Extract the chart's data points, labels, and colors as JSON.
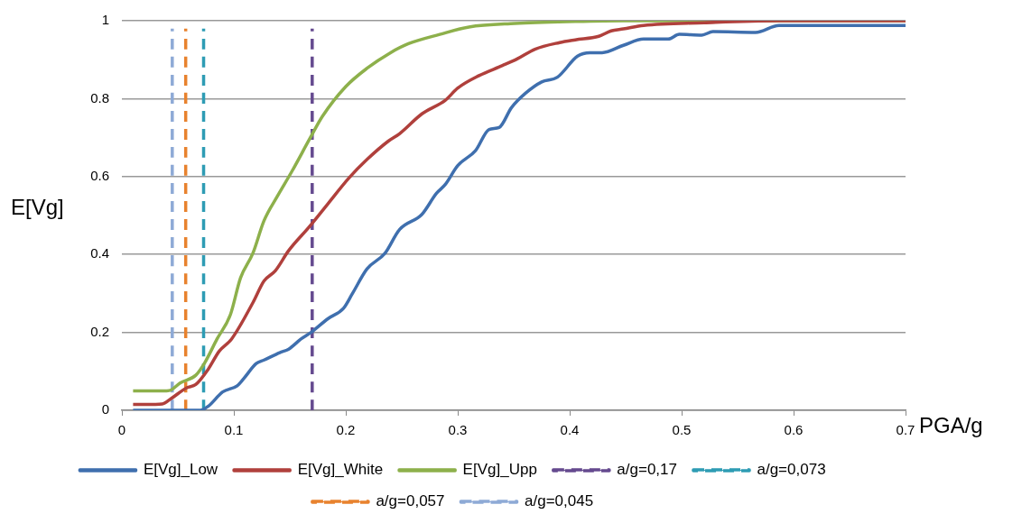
{
  "chart_data": {
    "type": "line",
    "xlabel": "PGA/g",
    "ylabel": "E[Vg]",
    "xlim": [
      0,
      0.7
    ],
    "xticks": [
      0,
      0.1,
      0.2,
      0.3,
      0.4,
      0.5,
      0.6,
      0.7
    ],
    "ylim": [
      0,
      1
    ],
    "yticks": [
      0,
      0.2,
      0.4,
      0.6,
      0.8,
      1
    ],
    "grid": "y",
    "legend": "bottom",
    "marker": "none",
    "line_style": "solid",
    "series": [
      {
        "name": "E[Vg]_Low",
        "color": "#3f6fae",
        "x": [
          0.01,
          0.07,
          0.077,
          0.09,
          0.103,
          0.109,
          0.12,
          0.127,
          0.141,
          0.149,
          0.16,
          0.169,
          0.184,
          0.198,
          0.206,
          0.219,
          0.235,
          0.248,
          0.268,
          0.281,
          0.289,
          0.3,
          0.316,
          0.328,
          0.337,
          0.348,
          0.361,
          0.375,
          0.389,
          0.407,
          0.418,
          0.429,
          0.448,
          0.466,
          0.488,
          0.498,
          0.518,
          0.528,
          0.566,
          0.587,
          0.7
        ],
        "values": [
          0,
          0,
          0.01,
          0.047,
          0.063,
          0.082,
          0.12,
          0.129,
          0.148,
          0.157,
          0.183,
          0.2,
          0.235,
          0.262,
          0.3,
          0.363,
          0.403,
          0.464,
          0.503,
          0.557,
          0.58,
          0.628,
          0.667,
          0.721,
          0.726,
          0.777,
          0.815,
          0.843,
          0.855,
          0.909,
          0.918,
          0.918,
          0.937,
          0.953,
          0.953,
          0.965,
          0.963,
          0.972,
          0.97,
          0.988,
          0.988
        ]
      },
      {
        "name": "E[Vg]_White",
        "color": "#b0403c",
        "x": [
          0.01,
          0.03,
          0.036,
          0.044,
          0.058,
          0.066,
          0.077,
          0.087,
          0.098,
          0.117,
          0.127,
          0.137,
          0.149,
          0.168,
          0.184,
          0.203,
          0.219,
          0.238,
          0.248,
          0.268,
          0.289,
          0.3,
          0.319,
          0.34,
          0.353,
          0.369,
          0.391,
          0.405,
          0.426,
          0.437,
          0.448,
          0.466,
          0.52,
          0.585,
          0.7
        ],
        "values": [
          0.015,
          0.015,
          0.016,
          0.03,
          0.058,
          0.066,
          0.105,
          0.152,
          0.183,
          0.276,
          0.332,
          0.358,
          0.41,
          0.473,
          0.53,
          0.597,
          0.644,
          0.691,
          0.71,
          0.761,
          0.796,
          0.827,
          0.859,
          0.885,
          0.902,
          0.927,
          0.944,
          0.951,
          0.96,
          0.974,
          0.979,
          0.988,
          0.995,
          1,
          1
        ]
      },
      {
        "name": "E[Vg]_Upp",
        "color": "#8db04b",
        "x": [
          0.01,
          0.04,
          0.044,
          0.052,
          0.066,
          0.074,
          0.085,
          0.097,
          0.106,
          0.117,
          0.127,
          0.139,
          0.152,
          0.168,
          0.179,
          0.2,
          0.219,
          0.24,
          0.256,
          0.284,
          0.31,
          0.351,
          0.405,
          0.448,
          0.7
        ],
        "values": [
          0.05,
          0.05,
          0.052,
          0.07,
          0.09,
          0.122,
          0.183,
          0.246,
          0.34,
          0.403,
          0.487,
          0.55,
          0.614,
          0.698,
          0.754,
          0.831,
          0.878,
          0.918,
          0.941,
          0.965,
          0.984,
          0.993,
          0.998,
          1,
          1
        ]
      },
      {
        "name": "a/g=0,17",
        "color": "#654a8f",
        "line_style": "dashed",
        "x": [
          0.17,
          0.17
        ],
        "values": [
          0,
          0.98
        ]
      },
      {
        "name": "a/g=0,073",
        "color": "#2e9cb4",
        "line_style": "dashed",
        "x": [
          0.073,
          0.073
        ],
        "values": [
          0,
          0.98
        ]
      },
      {
        "name": "a/g=0,057",
        "color": "#e8822e",
        "line_style": "dashed",
        "x": [
          0.057,
          0.057
        ],
        "values": [
          0,
          0.98
        ]
      },
      {
        "name": "a/g=0,045",
        "color": "#8eaad6",
        "line_style": "dashed",
        "x": [
          0.045,
          0.045
        ],
        "values": [
          0,
          0.98
        ]
      }
    ]
  }
}
